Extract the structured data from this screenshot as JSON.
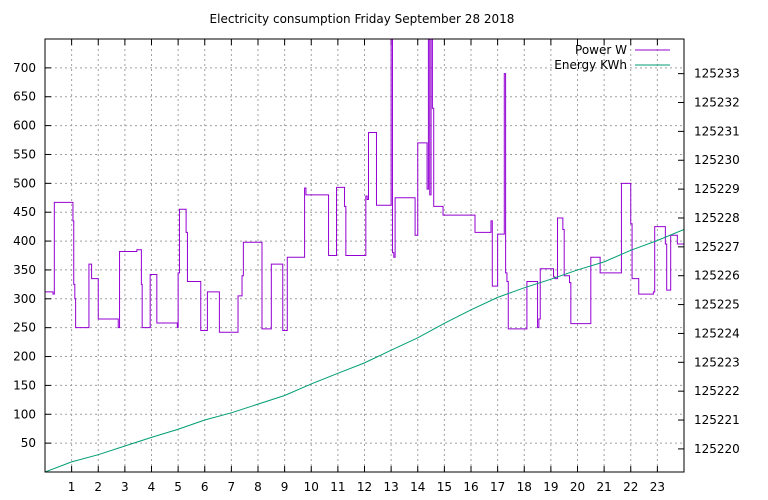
{
  "chart_data": {
    "type": "line",
    "title": "Electricity consumption Friday September 28 2018",
    "xlabel": "",
    "ylabel": "",
    "y2label": "",
    "xlim": [
      0,
      24
    ],
    "ylim": [
      0,
      750
    ],
    "y2lim": [
      125219.2,
      125234.2
    ],
    "x_ticks": [
      "1",
      "2",
      "3",
      "4",
      "5",
      "6",
      "7",
      "8",
      "9",
      "10",
      "11",
      "12",
      "13",
      "14",
      "15",
      "16",
      "17",
      "18",
      "19",
      "20",
      "21",
      "22",
      "23"
    ],
    "y_ticks": [
      50,
      100,
      150,
      200,
      250,
      300,
      350,
      400,
      450,
      500,
      550,
      600,
      650,
      700
    ],
    "y2_ticks": [
      125220,
      125221,
      125222,
      125223,
      125224,
      125225,
      125226,
      125227,
      125228,
      125229,
      125230,
      125231,
      125232,
      125233
    ],
    "grid": true,
    "legend_position": "top-right",
    "series": [
      {
        "name": "Power W",
        "axis": "left",
        "color": "#9400d3",
        "step": true,
        "points": [
          [
            0.0,
            312
          ],
          [
            0.3,
            308
          ],
          [
            0.35,
            467
          ],
          [
            1.0,
            467
          ],
          [
            1.05,
            435
          ],
          [
            1.08,
            325
          ],
          [
            1.12,
            300
          ],
          [
            1.15,
            250
          ],
          [
            1.6,
            250
          ],
          [
            1.65,
            360
          ],
          [
            1.75,
            335
          ],
          [
            1.95,
            335
          ],
          [
            2.0,
            265
          ],
          [
            2.7,
            265
          ],
          [
            2.75,
            250
          ],
          [
            2.8,
            382
          ],
          [
            3.4,
            382
          ],
          [
            3.45,
            385
          ],
          [
            3.6,
            385
          ],
          [
            3.62,
            325
          ],
          [
            3.65,
            250
          ],
          [
            3.9,
            250
          ],
          [
            3.95,
            342
          ],
          [
            4.15,
            342
          ],
          [
            4.2,
            258
          ],
          [
            4.95,
            258
          ],
          [
            4.97,
            250
          ],
          [
            5.0,
            345
          ],
          [
            5.05,
            455
          ],
          [
            5.25,
            455
          ],
          [
            5.3,
            415
          ],
          [
            5.35,
            330
          ],
          [
            5.8,
            330
          ],
          [
            5.85,
            245
          ],
          [
            6.05,
            245
          ],
          [
            6.1,
            312
          ],
          [
            6.5,
            312
          ],
          [
            6.55,
            242
          ],
          [
            7.2,
            242
          ],
          [
            7.25,
            305
          ],
          [
            7.35,
            305
          ],
          [
            7.4,
            340
          ],
          [
            7.45,
            398
          ],
          [
            8.1,
            398
          ],
          [
            8.15,
            248
          ],
          [
            8.45,
            248
          ],
          [
            8.5,
            360
          ],
          [
            8.9,
            360
          ],
          [
            8.93,
            245
          ],
          [
            9.05,
            245
          ],
          [
            9.1,
            372
          ],
          [
            9.7,
            372
          ],
          [
            9.75,
            492
          ],
          [
            9.8,
            480
          ],
          [
            10.6,
            480
          ],
          [
            10.65,
            375
          ],
          [
            10.9,
            375
          ],
          [
            10.95,
            493
          ],
          [
            11.2,
            493
          ],
          [
            11.25,
            460
          ],
          [
            11.3,
            375
          ],
          [
            12.0,
            375
          ],
          [
            12.05,
            478
          ],
          [
            12.1,
            472
          ],
          [
            12.15,
            588
          ],
          [
            12.4,
            588
          ],
          [
            12.45,
            462
          ],
          [
            12.9,
            462
          ],
          [
            13.0,
            750
          ],
          [
            13.05,
            380
          ],
          [
            13.1,
            372
          ],
          [
            13.15,
            475
          ],
          [
            13.85,
            475
          ],
          [
            13.9,
            410
          ],
          [
            13.95,
            410
          ],
          [
            14.0,
            570
          ],
          [
            14.3,
            570
          ],
          [
            14.35,
            490
          ],
          [
            14.4,
            750
          ],
          [
            14.45,
            480
          ],
          [
            14.5,
            750
          ],
          [
            14.55,
            630
          ],
          [
            14.6,
            460
          ],
          [
            14.9,
            460
          ],
          [
            14.95,
            445
          ],
          [
            16.1,
            445
          ],
          [
            16.15,
            415
          ],
          [
            16.7,
            415
          ],
          [
            16.75,
            435
          ],
          [
            16.8,
            322
          ],
          [
            16.95,
            322
          ],
          [
            17.0,
            412
          ],
          [
            17.2,
            412
          ],
          [
            17.25,
            690
          ],
          [
            17.3,
            345
          ],
          [
            17.35,
            330
          ],
          [
            17.4,
            248
          ],
          [
            17.8,
            248
          ],
          [
            17.85,
            248
          ],
          [
            18.05,
            248
          ],
          [
            18.1,
            330
          ],
          [
            18.45,
            330
          ],
          [
            18.5,
            250
          ],
          [
            18.55,
            265
          ],
          [
            18.6,
            352
          ],
          [
            19.05,
            352
          ],
          [
            19.1,
            338
          ],
          [
            19.15,
            335
          ],
          [
            19.25,
            440
          ],
          [
            19.4,
            440
          ],
          [
            19.45,
            420
          ],
          [
            19.5,
            340
          ],
          [
            19.65,
            340
          ],
          [
            19.7,
            328
          ],
          [
            19.75,
            257
          ],
          [
            20.45,
            257
          ],
          [
            20.5,
            372
          ],
          [
            20.8,
            372
          ],
          [
            20.85,
            345
          ],
          [
            21.6,
            345
          ],
          [
            21.65,
            500
          ],
          [
            21.95,
            500
          ],
          [
            22.0,
            430
          ],
          [
            22.05,
            335
          ],
          [
            22.25,
            335
          ],
          [
            22.3,
            308
          ],
          [
            22.8,
            308
          ],
          [
            22.85,
            312
          ],
          [
            22.9,
            425
          ],
          [
            23.25,
            425
          ],
          [
            23.3,
            395
          ],
          [
            23.35,
            315
          ],
          [
            23.45,
            315
          ],
          [
            23.5,
            410
          ],
          [
            23.7,
            410
          ],
          [
            23.75,
            395
          ],
          [
            24.0,
            395
          ]
        ]
      },
      {
        "name": "Energy KWh",
        "axis": "right",
        "color": "#009e73",
        "step": false,
        "points": [
          [
            0.0,
            125219.2
          ],
          [
            1.0,
            125219.55
          ],
          [
            2.0,
            125219.8
          ],
          [
            3.0,
            125220.1
          ],
          [
            4.0,
            125220.4
          ],
          [
            5.0,
            125220.68
          ],
          [
            6.0,
            125221.0
          ],
          [
            7.0,
            125221.25
          ],
          [
            8.0,
            125221.55
          ],
          [
            9.0,
            125221.85
          ],
          [
            10.0,
            125222.25
          ],
          [
            11.0,
            125222.62
          ],
          [
            12.0,
            125222.98
          ],
          [
            13.0,
            125223.42
          ],
          [
            14.0,
            125223.85
          ],
          [
            15.0,
            125224.35
          ],
          [
            16.0,
            125224.82
          ],
          [
            17.0,
            125225.25
          ],
          [
            18.0,
            125225.58
          ],
          [
            19.0,
            125225.88
          ],
          [
            20.0,
            125226.2
          ],
          [
            21.0,
            125226.48
          ],
          [
            22.0,
            125226.88
          ],
          [
            23.0,
            125227.22
          ],
          [
            24.0,
            125227.6
          ]
        ]
      }
    ]
  }
}
